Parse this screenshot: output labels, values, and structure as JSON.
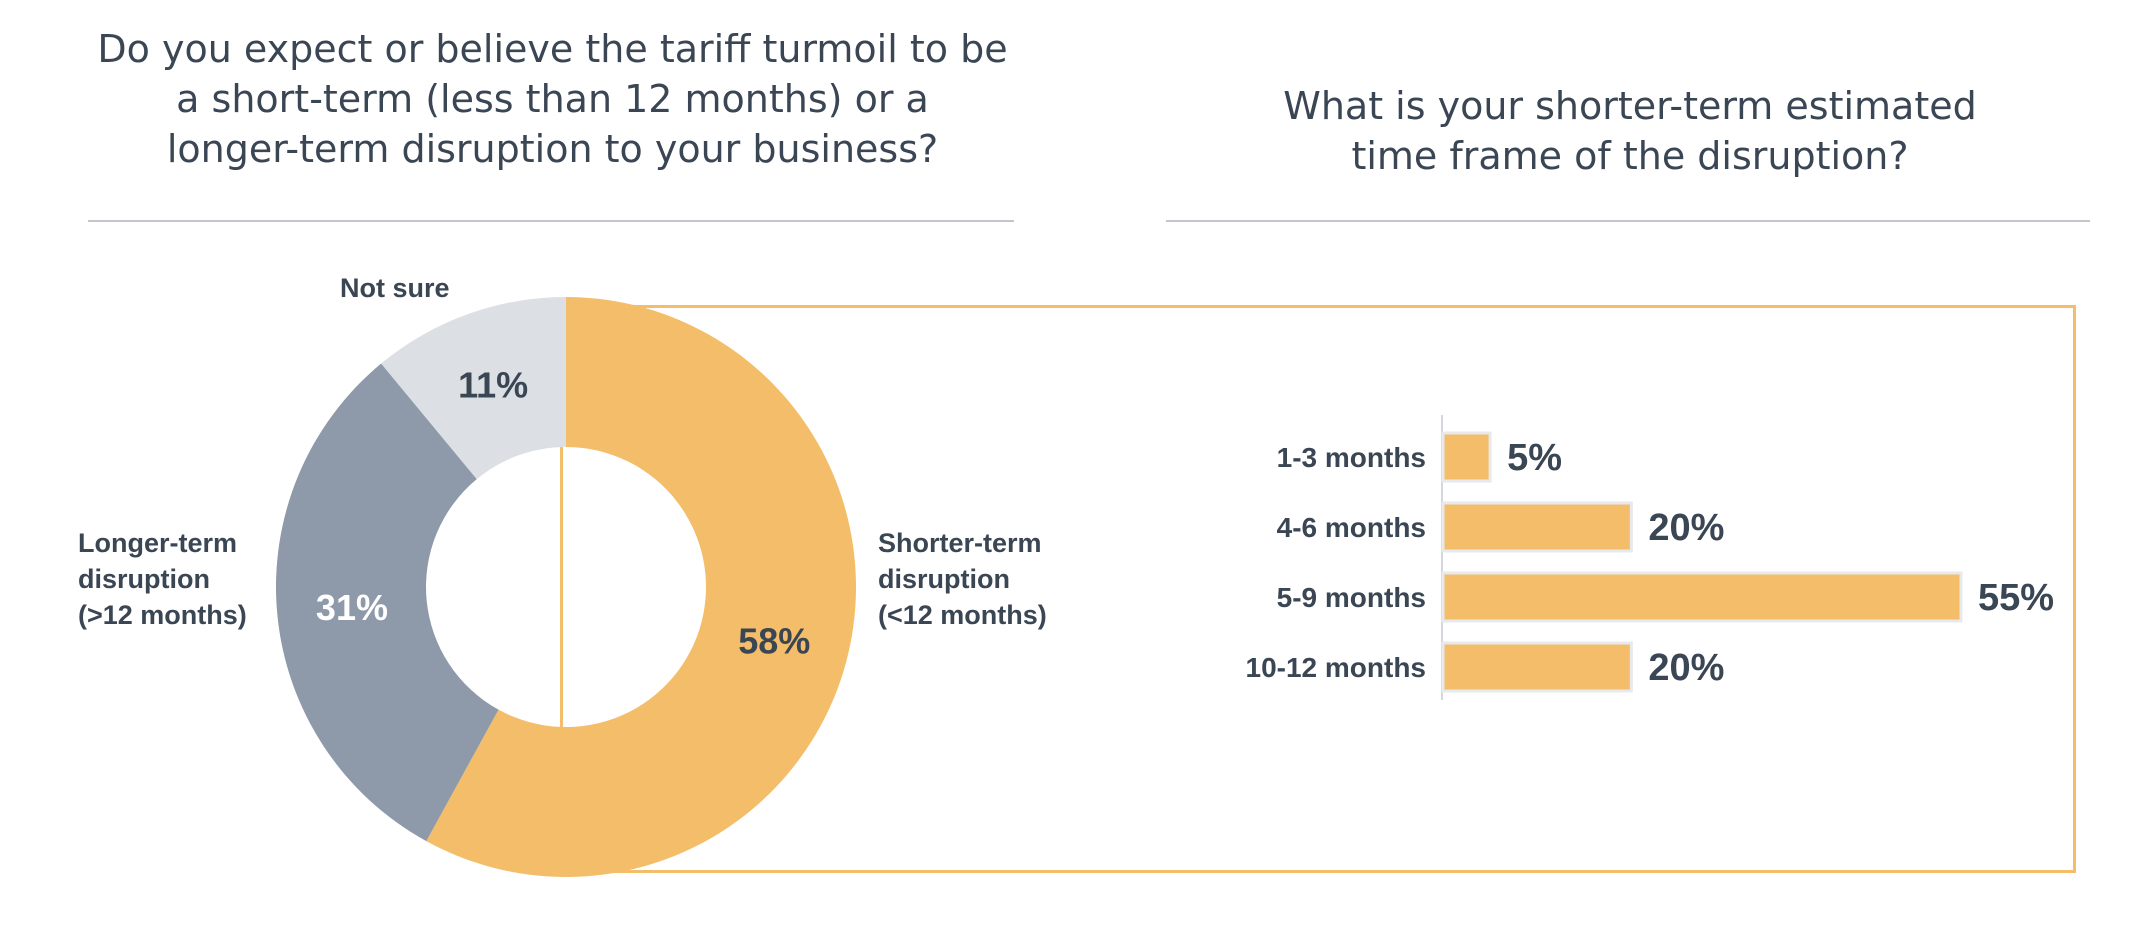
{
  "left_title": {
    "lines": [
      "Do you expect or believe the tariff turmoil to be",
      "a short-term (less than 12 months) or a",
      "longer-term disruption to your business?"
    ]
  },
  "right_title": {
    "lines": [
      "What is your shorter-term estimated",
      "time frame of the disruption?"
    ]
  },
  "colors": {
    "shorter": "#f4bd69",
    "longer": "#8e9aa9",
    "not_sure": "#dcdfe3",
    "text": "#3b4654",
    "callout_border": "#f4bd69",
    "rule": "#c3c7cb"
  },
  "chart_data": [
    {
      "type": "pie",
      "variant": "donut",
      "slices": [
        {
          "label_lines": [
            "Shorter-term",
            "disruption",
            "(<12 months)"
          ],
          "value": 58,
          "value_label": "58%",
          "color": "#f4bd69"
        },
        {
          "label_lines": [
            "Longer-term",
            "disruption",
            "(>12 months)"
          ],
          "value": 31,
          "value_label": "31%",
          "color": "#8e9aa9"
        },
        {
          "label_lines": [
            "Not sure"
          ],
          "value": 11,
          "value_label": "11%",
          "color": "#dcdfe3"
        }
      ]
    },
    {
      "type": "bar",
      "orientation": "horizontal",
      "categories": [
        "1-3 months",
        "4-6 months",
        "5-9 months",
        "10-12 months"
      ],
      "values": [
        5,
        20,
        55,
        20
      ],
      "value_labels": [
        "5%",
        "20%",
        "55%",
        "20%"
      ],
      "bar_color": "#f4bd69",
      "xlim": [
        0,
        55
      ],
      "grid": false
    }
  ]
}
